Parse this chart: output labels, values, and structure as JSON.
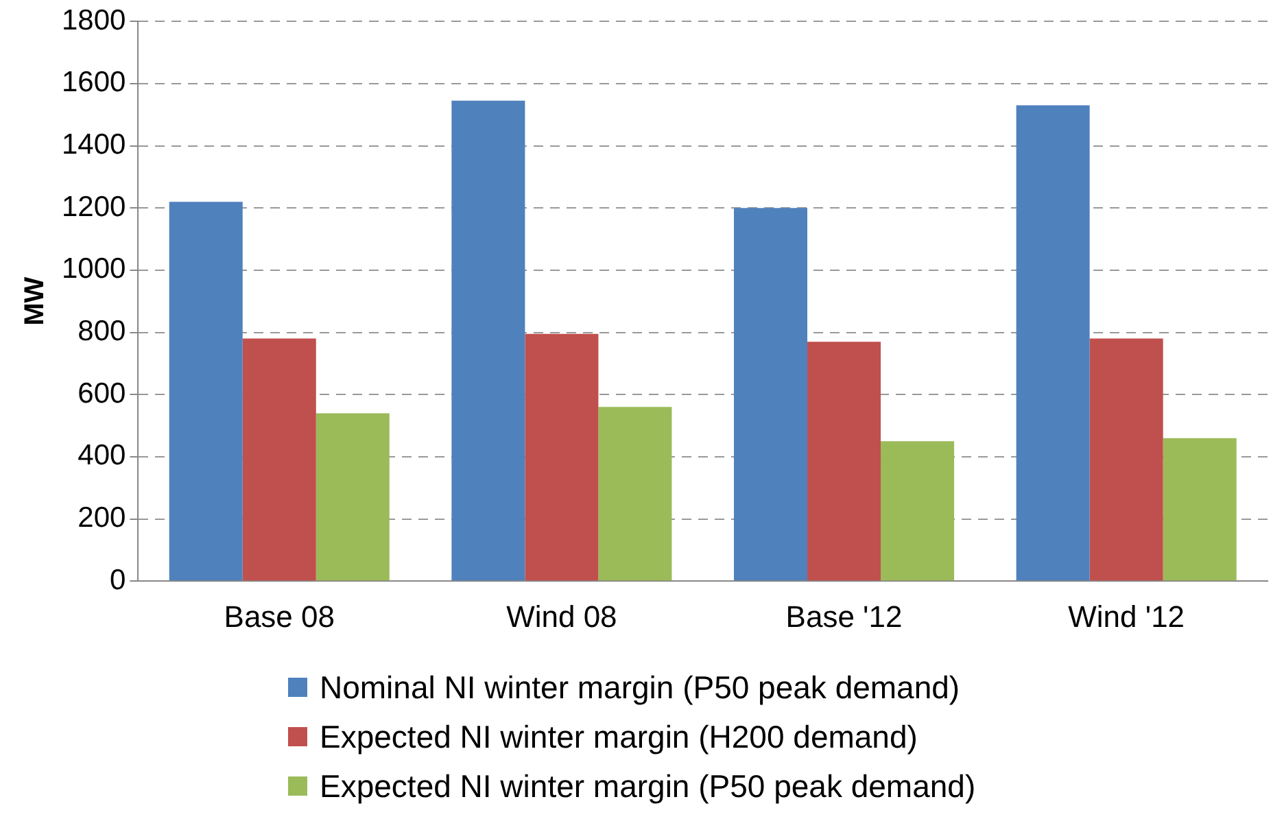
{
  "chart_data": {
    "type": "bar",
    "ylabel": "MW",
    "categories": [
      "Base 08",
      "Wind 08",
      "Base '12",
      "Wind '12"
    ],
    "series": [
      {
        "name": "Nominal NI winter margin (P50 peak demand)",
        "color": "#4f81bd",
        "values": [
          1220,
          1545,
          1200,
          1530
        ]
      },
      {
        "name": "Expected NI winter margin (H200 demand)",
        "color": "#c0504d",
        "values": [
          780,
          795,
          770,
          780
        ]
      },
      {
        "name": "Expected NI winter margin (P50 peak demand)",
        "color": "#9bbb59",
        "values": [
          540,
          560,
          450,
          460
        ]
      }
    ],
    "ylim": [
      0,
      1800
    ],
    "yticks": [
      0,
      200,
      400,
      600,
      800,
      1000,
      1200,
      1400,
      1600,
      1800
    ],
    "grid": "y",
    "legend": "bottom"
  }
}
